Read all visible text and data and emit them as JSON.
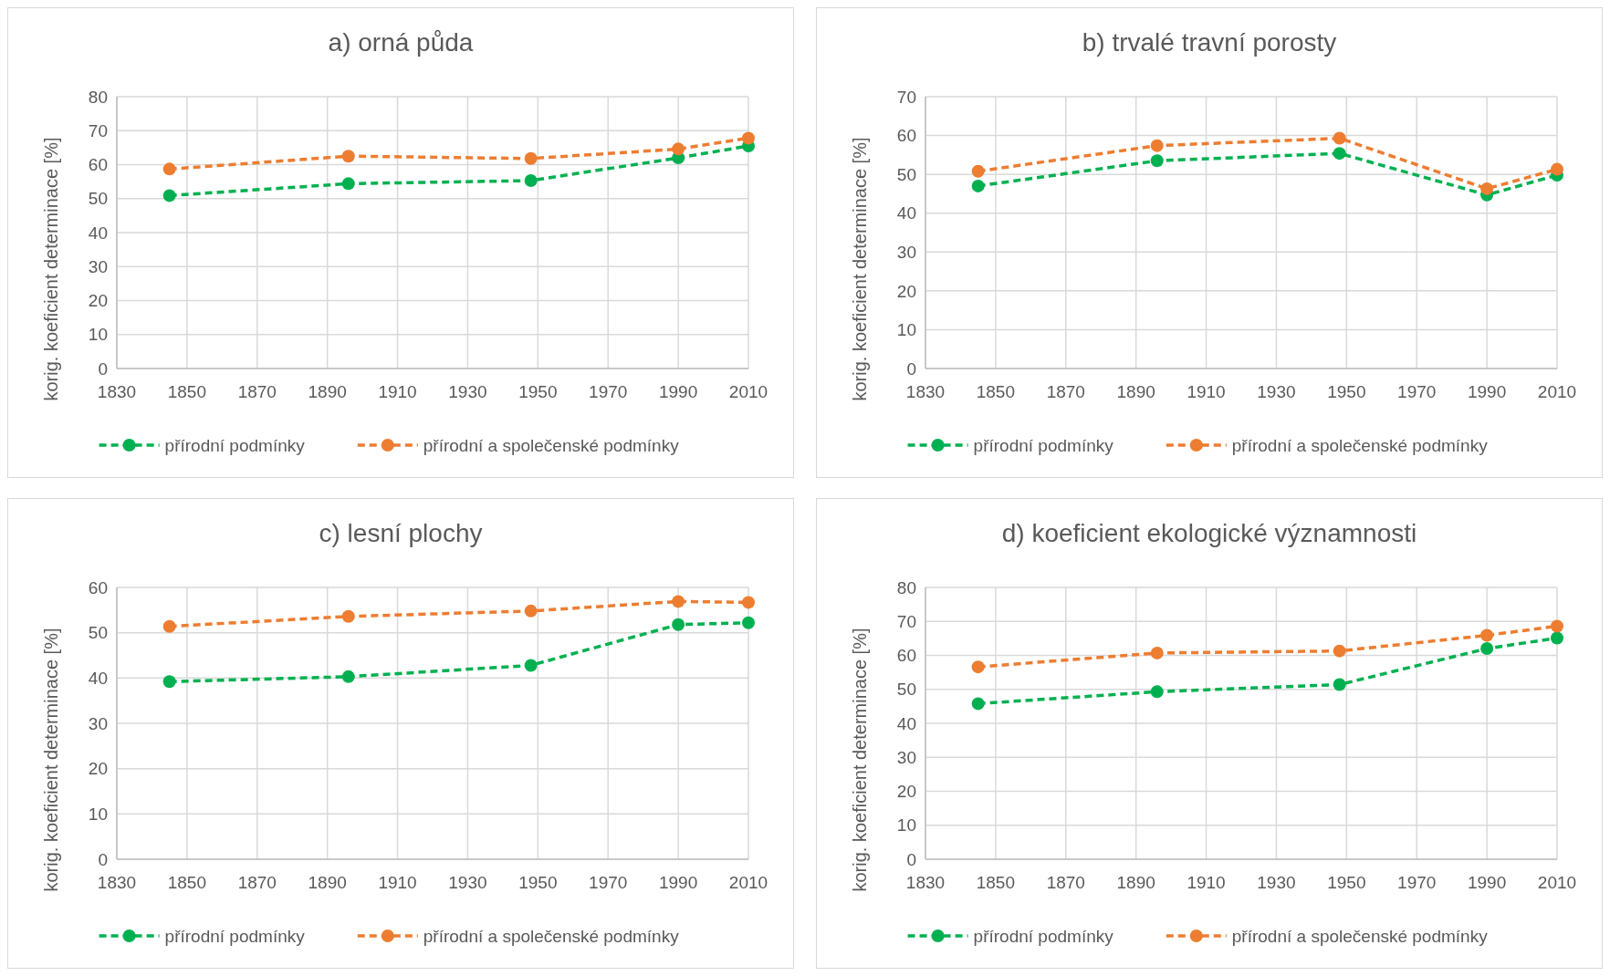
{
  "chart_data": [
    {
      "type": "line",
      "title": "a) orná půda",
      "ylabel": "korig. koeficient determinace [%]",
      "x": [
        1845,
        1896,
        1948,
        1990,
        2010
      ],
      "xlim": [
        1830,
        2010
      ],
      "xticks": [
        1830,
        1850,
        1870,
        1890,
        1910,
        1930,
        1950,
        1970,
        1990,
        2010
      ],
      "ylim": [
        0,
        80
      ],
      "yticks": [
        0,
        10,
        20,
        30,
        40,
        50,
        60,
        70,
        80
      ],
      "grid": true,
      "legend": "bottom",
      "marker": "circle",
      "line_style": "dashed",
      "series": [
        {
          "name": "přírodní podmínky",
          "color": "#00b050",
          "values": [
            50.9,
            54.4,
            55.3,
            62,
            65.5
          ]
        },
        {
          "name": "přírodní a společenské podmínky",
          "color": "#ed7d31",
          "values": [
            58.7,
            62.5,
            61.8,
            64.6,
            67.8
          ]
        }
      ]
    },
    {
      "type": "line",
      "title": "b) trvalé travní porosty",
      "ylabel": "korig. koeficient determinace [%]",
      "x": [
        1845,
        1896,
        1948,
        1990,
        2010
      ],
      "xlim": [
        1830,
        2010
      ],
      "xticks": [
        1830,
        1850,
        1870,
        1890,
        1910,
        1930,
        1950,
        1970,
        1990,
        2010
      ],
      "ylim": [
        0,
        70
      ],
      "yticks": [
        0,
        10,
        20,
        30,
        40,
        50,
        60,
        70
      ],
      "grid": true,
      "legend": "bottom",
      "marker": "circle",
      "line_style": "dashed",
      "series": [
        {
          "name": "přírodní podmínky",
          "color": "#00b050",
          "values": [
            47,
            53.5,
            55.4,
            44.7,
            49.8
          ]
        },
        {
          "name": "přírodní a společenské podmínky",
          "color": "#ed7d31",
          "values": [
            50.8,
            57.4,
            59.3,
            46.3,
            51.3
          ]
        }
      ]
    },
    {
      "type": "line",
      "title": "c) lesní plochy",
      "ylabel": "korig. koeficient determinace [%]",
      "x": [
        1845,
        1896,
        1948,
        1990,
        2010
      ],
      "xlim": [
        1830,
        2010
      ],
      "xticks": [
        1830,
        1850,
        1870,
        1890,
        1910,
        1930,
        1950,
        1970,
        1990,
        2010
      ],
      "ylim": [
        0,
        60
      ],
      "yticks": [
        0,
        10,
        20,
        30,
        40,
        50,
        60
      ],
      "grid": true,
      "legend": "bottom",
      "marker": "circle",
      "line_style": "dashed",
      "series": [
        {
          "name": "přírodní podmínky",
          "color": "#00b050",
          "values": [
            39.2,
            40.3,
            42.8,
            51.8,
            52.2
          ]
        },
        {
          "name": "přírodní a společenské podmínky",
          "color": "#ed7d31",
          "values": [
            51.4,
            53.6,
            54.8,
            56.9,
            56.7
          ]
        }
      ]
    },
    {
      "type": "line",
      "title": "d) koeficient ekologické významnosti",
      "ylabel": "korig. koeficient determinace [%]",
      "x": [
        1845,
        1896,
        1948,
        1990,
        2010
      ],
      "xlim": [
        1830,
        2010
      ],
      "xticks": [
        1830,
        1850,
        1870,
        1890,
        1910,
        1930,
        1950,
        1970,
        1990,
        2010
      ],
      "ylim": [
        0,
        80
      ],
      "yticks": [
        0,
        10,
        20,
        30,
        40,
        50,
        60,
        70,
        80
      ],
      "grid": true,
      "legend": "bottom",
      "marker": "circle",
      "line_style": "dashed",
      "series": [
        {
          "name": "přírodní podmínky",
          "color": "#00b050",
          "values": [
            45.8,
            49.3,
            51.4,
            62,
            65.1
          ]
        },
        {
          "name": "přírodní a společenské podmínky",
          "color": "#ed7d31",
          "values": [
            56.6,
            60.7,
            61.3,
            65.9,
            68.6
          ]
        }
      ]
    }
  ]
}
